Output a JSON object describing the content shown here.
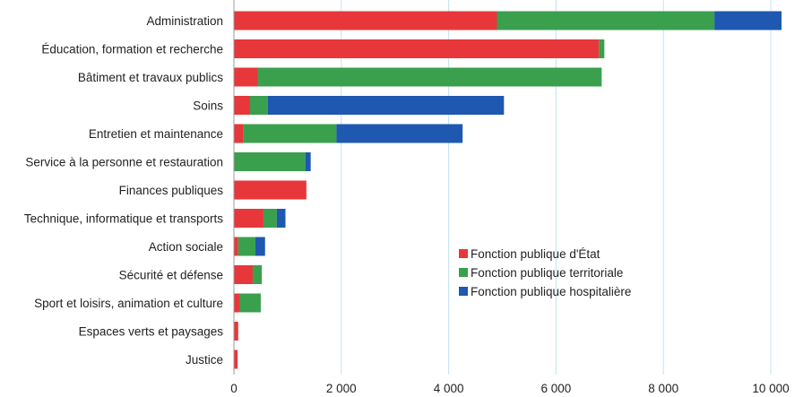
{
  "chart_data": {
    "type": "bar",
    "orientation": "horizontal",
    "stacked": true,
    "categories": [
      "Administration",
      "Éducation, formation et recherche",
      "Bâtiment et travaux publics",
      "Soins",
      "Entretien et maintenance",
      "Service à la personne et restauration",
      "Finances publiques",
      "Technique, informatique et transports",
      "Action sociale",
      "Sécurité et défense",
      "Sport et loisirs, animation et culture",
      "Espaces verts et paysages",
      "Justice"
    ],
    "series": [
      {
        "name": "Fonction publique d'État",
        "color": "#e8373a",
        "values": [
          4900,
          6800,
          450,
          300,
          180,
          0,
          1350,
          550,
          80,
          350,
          100,
          80,
          70
        ]
      },
      {
        "name": "Fonction publique territoriale",
        "color": "#3aa04e",
        "values": [
          4050,
          100,
          6400,
          330,
          1730,
          1330,
          0,
          250,
          320,
          170,
          400,
          0,
          0
        ]
      },
      {
        "name": "Fonction publique hospitalière",
        "color": "#1f58b0",
        "values": [
          1250,
          0,
          0,
          4400,
          2350,
          100,
          0,
          160,
          180,
          0,
          0,
          0,
          0
        ]
      }
    ],
    "xlim": [
      0,
      10800
    ],
    "xticks": [
      0,
      2000,
      4000,
      6000,
      8000,
      10000
    ],
    "xtick_labels": [
      "0",
      "2 000",
      "4 000",
      "6 000",
      "8 000",
      "10 000"
    ],
    "grid": "vertical",
    "grid_color": "#bfe3ef",
    "legend_position": "inside-bottom-right"
  }
}
